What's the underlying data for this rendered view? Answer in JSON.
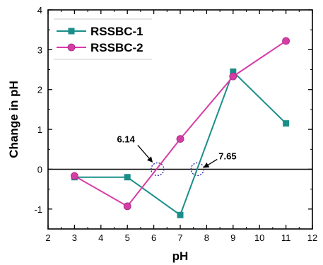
{
  "chart_data": {
    "type": "line",
    "title": "",
    "xlabel": "pH",
    "ylabel": "Change in pH",
    "xlim": [
      2,
      12
    ],
    "ylim": [
      -1.5,
      4
    ],
    "xticks": [
      2,
      3,
      4,
      5,
      6,
      7,
      8,
      9,
      10,
      11,
      12
    ],
    "yticks": [
      -1,
      0,
      1,
      2,
      3,
      4
    ],
    "xtick_labels": [
      "2",
      "3",
      "4",
      "5",
      "6",
      "7",
      "8",
      "9",
      "10",
      "11",
      "12"
    ],
    "ytick_labels": [
      "-1",
      "0",
      "1",
      "2",
      "3",
      "4"
    ],
    "grid": false,
    "zero_line": true,
    "legend_position": "top-left",
    "series": [
      {
        "name": "RSSBC-1",
        "color": "#1a8f8a",
        "marker": "square",
        "x": [
          3,
          5,
          7,
          9,
          11
        ],
        "y": [
          -0.2,
          -0.2,
          -1.15,
          2.45,
          1.15
        ]
      },
      {
        "name": "RSSBC-2",
        "color": "#d63ca6",
        "marker": "circle",
        "x": [
          3,
          5,
          7,
          9,
          11
        ],
        "y": [
          -0.17,
          -0.93,
          0.76,
          2.33,
          3.22
        ]
      }
    ],
    "annotations": [
      {
        "label": "6.14",
        "x": 6.14,
        "y": 0
      },
      {
        "label": "7.65",
        "x": 7.65,
        "y": 0
      }
    ]
  }
}
